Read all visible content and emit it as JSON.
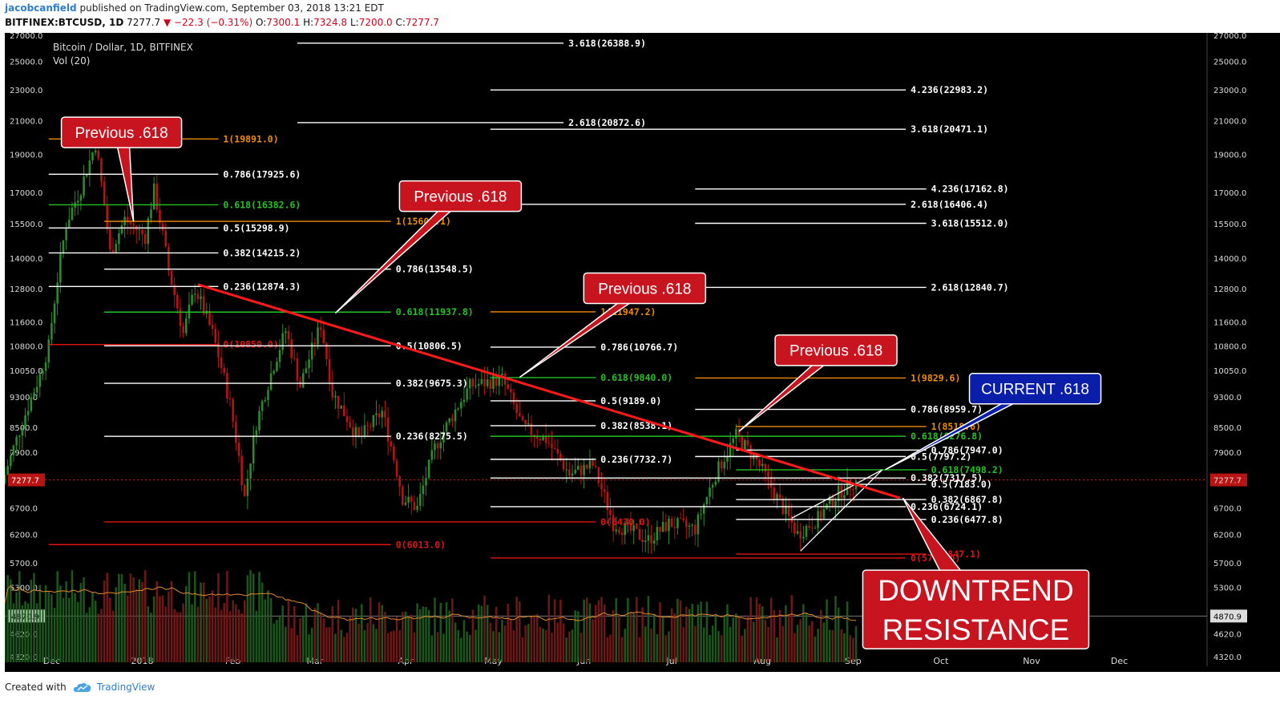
{
  "header": {
    "author": "jacobcanfield",
    "published": "published on TradingView.com, September 03, 2018 13:21 EDT",
    "symbol": "BITFINEX:BTCUSD, 1D",
    "last": "7277.7",
    "change": "▼ −22.3 (−0.31%)",
    "o_label": "O:",
    "o": "7300.1",
    "h_label": "H:",
    "h": "7324.8",
    "l_label": "L:",
    "l": "7200.0",
    "c_label": "C:",
    "c": "7277.7"
  },
  "footer": {
    "created_with": "Created with",
    "brand": "TradingView"
  },
  "colors": {
    "background": "#000000",
    "up": "#2e8b2e",
    "down": "#b81414",
    "fib_white": "#ffffff",
    "fib_green": "#22c322",
    "fib_orange": "#f08c00",
    "fib_red": "#e01414",
    "trendline": "#ff1a1a",
    "callout_red": "#c8141e",
    "callout_blue": "#0a1eaa",
    "volume_ma": "#e08a2a"
  },
  "chart_data": {
    "type": "candlestick",
    "title": "Bitcoin / Dollar, 1D, BITFINEX",
    "subtitle": "Vol (20)",
    "y_scale": "log",
    "ylim": [
      4200,
      27200
    ],
    "y_ticks": [
      27000,
      25000,
      23000,
      21000,
      19000,
      17000,
      15500,
      14000,
      12800,
      11600,
      10800,
      10050,
      9300,
      8500,
      7900,
      7277.7,
      6700,
      6200,
      5700,
      5300,
      4870.9,
      4620,
      4320
    ],
    "y_tick_labels": [
      "27000.0",
      "25000.0",
      "23000.0",
      "21000.0",
      "19000.0",
      "17000.0",
      "15500.0",
      "14000.0",
      "12800.0",
      "11600.0",
      "10800.0",
      "10050.0",
      "9300.0",
      "8500.0",
      "7900.0",
      "7277.7",
      "6700.0",
      "6200.0",
      "5700.0",
      "5300.0",
      "4870.9",
      "4620.0",
      "4320.0"
    ],
    "highlight_ticks": [
      "7277.7",
      "4870.9"
    ],
    "x_range": [
      "2017-11-15",
      "2018-12-31"
    ],
    "x_ticks": [
      {
        "date": "2017-12-01",
        "label": "Dec"
      },
      {
        "date": "2018-01-01",
        "label": "2018"
      },
      {
        "date": "2018-02-01",
        "label": "Feb"
      },
      {
        "date": "2018-03-01",
        "label": "Mar"
      },
      {
        "date": "2018-04-01",
        "label": "Apr"
      },
      {
        "date": "2018-05-01",
        "label": "May"
      },
      {
        "date": "2018-06-01",
        "label": "Jun"
      },
      {
        "date": "2018-07-01",
        "label": "Jul"
      },
      {
        "date": "2018-08-01",
        "label": "Aug"
      },
      {
        "date": "2018-09-01",
        "label": "Sep"
      },
      {
        "date": "2018-10-01",
        "label": "Oct"
      },
      {
        "date": "2018-11-01",
        "label": "Nov"
      },
      {
        "date": "2018-12-01",
        "label": "Dec"
      }
    ],
    "price_path": [
      [
        "2017-11-15",
        7200
      ],
      [
        "2017-11-20",
        8200
      ],
      [
        "2017-11-28",
        9900
      ],
      [
        "2017-12-01",
        10800
      ],
      [
        "2017-12-07",
        15500
      ],
      [
        "2017-12-12",
        17200
      ],
      [
        "2017-12-17",
        19600
      ],
      [
        "2017-12-22",
        14200
      ],
      [
        "2017-12-27",
        15700
      ],
      [
        "2018-01-03",
        14900
      ],
      [
        "2018-01-06",
        17100
      ],
      [
        "2018-01-11",
        13500
      ],
      [
        "2018-01-16",
        11200
      ],
      [
        "2018-01-20",
        12800
      ],
      [
        "2018-01-26",
        11200
      ],
      [
        "2018-02-01",
        9100
      ],
      [
        "2018-02-06",
        6900
      ],
      [
        "2018-02-10",
        8600
      ],
      [
        "2018-02-20",
        11300
      ],
      [
        "2018-02-25",
        9600
      ],
      [
        "2018-03-04",
        11500
      ],
      [
        "2018-03-08",
        9400
      ],
      [
        "2018-03-17",
        8200
      ],
      [
        "2018-03-25",
        8900
      ],
      [
        "2018-04-01",
        6900
      ],
      [
        "2018-04-06",
        6700
      ],
      [
        "2018-04-12",
        8000
      ],
      [
        "2018-04-24",
        9600
      ],
      [
        "2018-05-05",
        9800
      ],
      [
        "2018-05-12",
        8500
      ],
      [
        "2018-05-20",
        8200
      ],
      [
        "2018-05-28",
        7400
      ],
      [
        "2018-06-05",
        7600
      ],
      [
        "2018-06-12",
        6400
      ],
      [
        "2018-06-24",
        6100
      ],
      [
        "2018-07-01",
        6400
      ],
      [
        "2018-07-10",
        6300
      ],
      [
        "2018-07-17",
        7400
      ],
      [
        "2018-07-24",
        8300
      ],
      [
        "2018-07-31",
        7700
      ],
      [
        "2018-08-07",
        6900
      ],
      [
        "2018-08-14",
        6200
      ],
      [
        "2018-08-21",
        6500
      ],
      [
        "2018-08-28",
        7000
      ],
      [
        "2018-09-03",
        7277.7
      ]
    ],
    "volume": {
      "baseline_price": 4250,
      "top_price": 5750,
      "ma_label": "Vol (20)"
    },
    "fib_levels": [
      {
        "label": "3.618(26388.9)",
        "price": 26388.9,
        "color": "white",
        "x1": "2018-02-23",
        "x2": "2018-05-25"
      },
      {
        "label": "4.236(22983.2)",
        "price": 22983.2,
        "color": "white",
        "x1": "2018-04-30",
        "x2": "2018-09-19"
      },
      {
        "label": "2.618(20872.6)",
        "price": 20872.6,
        "color": "white",
        "x1": "2018-02-23",
        "x2": "2018-05-25"
      },
      {
        "label": "3.618(20471.1)",
        "price": 20471.1,
        "color": "white",
        "x1": "2018-04-30",
        "x2": "2018-09-19"
      },
      {
        "label": "1(19891.0)",
        "price": 19891.0,
        "color": "orange",
        "x1": "2017-11-30",
        "x2": "2018-01-27"
      },
      {
        "label": "0.786(17925.6)",
        "price": 17925.6,
        "color": "white",
        "x1": "2017-11-30",
        "x2": "2018-01-27"
      },
      {
        "label": "4.236(17162.8)",
        "price": 17162.8,
        "color": "white",
        "x1": "2018-07-09",
        "x2": "2018-09-26"
      },
      {
        "label": "0.618(16382.6)",
        "price": 16382.6,
        "color": "green",
        "x1": "2017-11-30",
        "x2": "2018-01-27"
      },
      {
        "label": "2.618(16406.4)",
        "price": 16406.4,
        "color": "white",
        "x1": "2018-04-30",
        "x2": "2018-09-19"
      },
      {
        "label": "1(15600.1)",
        "price": 15600.1,
        "color": "orange",
        "x1": "2017-12-19",
        "x2": "2018-03-27"
      },
      {
        "label": "0.5(15298.9)",
        "price": 15298.9,
        "color": "white",
        "x1": "2017-11-30",
        "x2": "2018-01-27"
      },
      {
        "label": "3.618(15512.0)",
        "price": 15512.0,
        "color": "white",
        "x1": "2018-07-09",
        "x2": "2018-09-26"
      },
      {
        "label": "0.382(14215.2)",
        "price": 14215.2,
        "color": "white",
        "x1": "2017-11-30",
        "x2": "2018-01-27"
      },
      {
        "label": "0.786(13548.5)",
        "price": 13548.5,
        "color": "white",
        "x1": "2017-12-19",
        "x2": "2018-03-27"
      },
      {
        "label": "0.236(12874.3)",
        "price": 12874.3,
        "color": "white",
        "x1": "2017-11-30",
        "x2": "2018-01-27"
      },
      {
        "label": "2.618(12840.7)",
        "price": 12840.7,
        "color": "white",
        "x1": "2018-07-09",
        "x2": "2018-09-26"
      },
      {
        "label": "0.618(11937.8)",
        "price": 11937.8,
        "color": "green",
        "x1": "2017-12-19",
        "x2": "2018-03-27"
      },
      {
        "label": "1(11947.2)",
        "price": 11947.2,
        "color": "orange",
        "x1": "2018-04-30",
        "x2": "2018-06-05"
      },
      {
        "label": "0(10850.0)",
        "price": 10850.0,
        "color": "red",
        "x1": "2017-11-30",
        "x2": "2018-01-27"
      },
      {
        "label": "0.5(10806.5)",
        "price": 10806.5,
        "color": "white",
        "x1": "2017-12-19",
        "x2": "2018-03-27"
      },
      {
        "label": "0.786(10766.7)",
        "price": 10766.7,
        "color": "white",
        "x1": "2018-04-30",
        "x2": "2018-06-05"
      },
      {
        "label": "0.382(9675.3)",
        "price": 9675.3,
        "color": "white",
        "x1": "2017-12-19",
        "x2": "2018-03-27"
      },
      {
        "label": "0.618(9840.0)",
        "price": 9840.0,
        "color": "green",
        "x1": "2018-04-30",
        "x2": "2018-06-05"
      },
      {
        "label": "1(9829.6)",
        "price": 9829.6,
        "color": "orange",
        "x1": "2018-07-09",
        "x2": "2018-09-19"
      },
      {
        "label": "0.5(9189.0)",
        "price": 9189.0,
        "color": "white",
        "x1": "2018-04-30",
        "x2": "2018-06-05"
      },
      {
        "label": "0.786(8959.7)",
        "price": 8959.7,
        "color": "white",
        "x1": "2018-07-09",
        "x2": "2018-09-19"
      },
      {
        "label": "0.382(8538.1)",
        "price": 8538.1,
        "color": "white",
        "x1": "2018-04-30",
        "x2": "2018-06-05"
      },
      {
        "label": "1(8518.6)",
        "price": 8518.6,
        "color": "orange",
        "x1": "2018-07-23",
        "x2": "2018-09-26"
      },
      {
        "label": "0.236(8275.5)",
        "price": 8275.5,
        "color": "white",
        "x1": "2017-12-19",
        "x2": "2018-03-27"
      },
      {
        "label": "0.618(8276.8)",
        "price": 8276.8,
        "color": "green",
        "x1": "2018-04-30",
        "x2": "2018-09-19"
      },
      {
        "label": "0.786(7947.0)",
        "price": 7947.0,
        "color": "white",
        "x1": "2018-07-23",
        "x2": "2018-09-26"
      },
      {
        "label": "0.236(7732.7)",
        "price": 7732.7,
        "color": "white",
        "x1": "2018-04-30",
        "x2": "2018-06-05"
      },
      {
        "label": "0.5(7797.2)",
        "price": 7797.2,
        "color": "white",
        "x1": "2018-07-09",
        "x2": "2018-09-19"
      },
      {
        "label": "0.618(7498.2)",
        "price": 7498.2,
        "color": "green",
        "x1": "2018-07-23",
        "x2": "2018-09-26"
      },
      {
        "label": "0.382(7317.5)",
        "price": 7317.5,
        "color": "white",
        "x1": "2018-04-30",
        "x2": "2018-09-19"
      },
      {
        "label": "0.5(7183.0)",
        "price": 7183.0,
        "color": "white",
        "x1": "2018-07-23",
        "x2": "2018-09-26"
      },
      {
        "label": "0.382(6867.8)",
        "price": 6867.8,
        "color": "white",
        "x1": "2018-07-23",
        "x2": "2018-09-26"
      },
      {
        "label": "0.236(6724.1)",
        "price": 6724.1,
        "color": "white",
        "x1": "2018-04-30",
        "x2": "2018-09-19"
      },
      {
        "label": "0(6430.0)",
        "price": 6430.0,
        "color": "red",
        "x1": "2017-12-19",
        "x2": "2018-06-05"
      },
      {
        "label": "0.236(6477.8)",
        "price": 6477.8,
        "color": "white",
        "x1": "2018-07-23",
        "x2": "2018-09-26"
      },
      {
        "label": "0(6013.0)",
        "price": 6013.0,
        "color": "red",
        "x1": "2017-11-30",
        "x2": "2018-03-27"
      },
      {
        "label": "0(5847.1)",
        "price": 5847.1,
        "color": "red",
        "x1": "2018-07-23",
        "x2": "2018-09-26"
      },
      {
        "label": "0(5780.0)",
        "price": 5780.0,
        "color": "red",
        "x1": "2018-04-30",
        "x2": "2018-09-19"
      }
    ],
    "trendline": {
      "from": [
        "2018-01-20",
        12950
      ],
      "to": [
        "2018-09-17",
        6900
      ]
    },
    "wedge_lines": [
      {
        "from": [
          "2018-08-11",
          6500
        ],
        "to": [
          "2018-09-11",
          7500
        ]
      },
      {
        "from": [
          "2018-08-14",
          5900
        ],
        "to": [
          "2018-09-11",
          7500
        ]
      }
    ],
    "annotations": [
      {
        "text": "Previous .618",
        "style": "red",
        "anchor": [
          "2017-12-29",
          15600
        ]
      },
      {
        "text": "Previous .618",
        "style": "red",
        "anchor": [
          "2018-03-08",
          11900
        ]
      },
      {
        "text": "Previous .618",
        "style": "red",
        "anchor": [
          "2018-05-10",
          9850
        ]
      },
      {
        "text": "Previous .618",
        "style": "red",
        "anchor": [
          "2018-07-24",
          8400
        ]
      },
      {
        "text": "CURRENT .618",
        "style": "blue",
        "anchor": [
          "2018-09-12",
          7500
        ]
      },
      {
        "text": "DOWNTREND\nRESISTANCE",
        "style": "red-big",
        "anchor": [
          "2018-09-18",
          6900
        ]
      }
    ]
  }
}
